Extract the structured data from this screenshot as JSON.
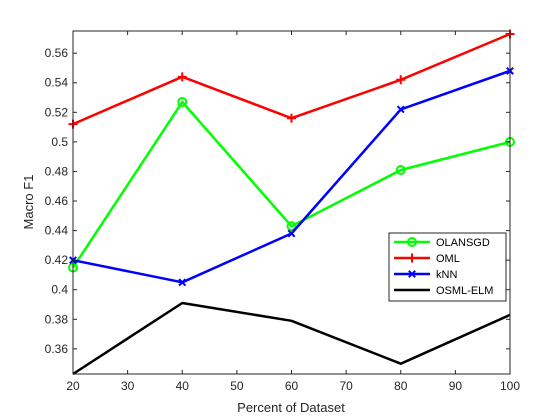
{
  "chart_data": {
    "type": "line",
    "title": "",
    "xlabel": "Percent of Dataset",
    "ylabel": "Macro F1",
    "x": [
      20,
      40,
      60,
      80,
      100
    ],
    "xlim": [
      20,
      100
    ],
    "ylim": [
      0.343,
      0.575
    ],
    "xticks": [
      20,
      30,
      40,
      50,
      60,
      70,
      80,
      90,
      100
    ],
    "yticks": [
      0.36,
      0.38,
      0.4,
      0.42,
      0.44,
      0.46,
      0.48,
      0.5,
      0.52,
      0.54,
      0.56
    ],
    "xtick_labels": [
      "20",
      "30",
      "40",
      "50",
      "60",
      "70",
      "80",
      "90",
      "100"
    ],
    "ytick_labels": [
      "0.36",
      "0.38",
      "0.4",
      "0.42",
      "0.44",
      "0.46",
      "0.48",
      "0.5",
      "0.52",
      "0.54",
      "0.56"
    ],
    "grid": false,
    "legend_position": "lower-right",
    "series": [
      {
        "name": "OLANSGD",
        "values": [
          0.415,
          0.527,
          0.443,
          0.481,
          0.5
        ],
        "color": "#00ff00",
        "marker": "circle"
      },
      {
        "name": "OML",
        "values": [
          0.512,
          0.544,
          0.516,
          0.542,
          0.573
        ],
        "color": "#ff0000",
        "marker": "plus"
      },
      {
        "name": "kNN",
        "values": [
          0.42,
          0.405,
          0.438,
          0.522,
          0.548
        ],
        "color": "#0000ff",
        "marker": "cross"
      },
      {
        "name": "OSML-ELM",
        "values": [
          0.343,
          0.391,
          0.379,
          0.35,
          0.383
        ],
        "color": "#000000",
        "marker": "none"
      }
    ]
  }
}
